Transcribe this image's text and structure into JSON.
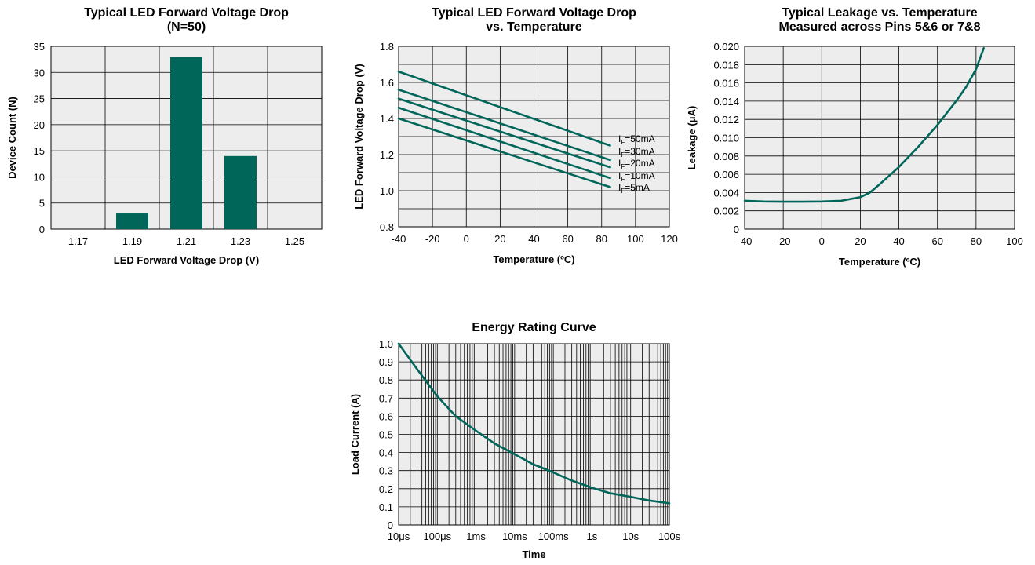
{
  "colors": {
    "series": "#00665a",
    "plot_bg": "#ededed",
    "grid": "#000000"
  },
  "chart_data": [
    {
      "type": "bar",
      "title": "Typical LED Forward Voltage Drop",
      "subtitle": "(N=50)",
      "xlabel": "LED Forward Voltage Drop (V)",
      "ylabel": "Device Count (N)",
      "categories": [
        "1.17",
        "1.19",
        "1.21",
        "1.23",
        "1.25"
      ],
      "values": [
        0,
        3,
        33,
        14,
        0
      ],
      "ylim": [
        0,
        35
      ],
      "yticks": [
        0,
        5,
        10,
        15,
        20,
        25,
        30,
        35
      ],
      "grid": true
    },
    {
      "type": "line",
      "title": "Typical LED Forward Voltage Drop",
      "subtitle": "vs. Temperature",
      "xlabel": "Temperature (ºC)",
      "ylabel": "LED Forward Voltage Drop (V)",
      "xlim": [
        -40,
        120
      ],
      "ylim": [
        0.8,
        1.8
      ],
      "xticks": [
        -40,
        -20,
        0,
        20,
        40,
        60,
        80,
        100,
        120
      ],
      "yticks": [
        0.8,
        1.0,
        1.2,
        1.4,
        1.6,
        1.8
      ],
      "grid": true,
      "series": [
        {
          "name": "IF=50mA",
          "x": [
            -40,
            85
          ],
          "y": [
            1.66,
            1.25
          ]
        },
        {
          "name": "IF=30mA",
          "x": [
            -40,
            85
          ],
          "y": [
            1.56,
            1.17
          ]
        },
        {
          "name": "IF=20mA",
          "x": [
            -40,
            85
          ],
          "y": [
            1.51,
            1.13
          ]
        },
        {
          "name": "IF=10mA",
          "x": [
            -40,
            85
          ],
          "y": [
            1.46,
            1.07
          ]
        },
        {
          "name": "IF=5mA",
          "x": [
            -40,
            85
          ],
          "y": [
            1.4,
            1.02
          ]
        }
      ],
      "annotations": [
        "IF=50mA",
        "IF=30mA",
        "IF=20mA",
        "IF=10mA",
        "IF=5mA"
      ]
    },
    {
      "type": "line",
      "title": "Typical Leakage vs. Temperature",
      "subtitle": "Measured across Pins 5&6 or 7&8",
      "xlabel": "Temperature (ºC)",
      "ylabel": "Leakage (μA)",
      "xlim": [
        -40,
        100
      ],
      "ylim": [
        0,
        0.02
      ],
      "xticks": [
        -40,
        -20,
        0,
        20,
        40,
        60,
        80,
        100
      ],
      "yticks": [
        "0",
        "0.002",
        "0.004",
        "0.006",
        "0.008",
        "0.010",
        "0.012",
        "0.014",
        "0.016",
        "0.018",
        "0.020"
      ],
      "grid": true,
      "series": [
        {
          "x": [
            -40,
            -30,
            -20,
            -10,
            0,
            10,
            15,
            20,
            25,
            30,
            40,
            50,
            60,
            70,
            75,
            80,
            84
          ],
          "y": [
            0.0031,
            0.00302,
            0.003,
            0.003,
            0.00302,
            0.0031,
            0.0033,
            0.0035,
            0.004,
            0.0049,
            0.0068,
            0.009,
            0.0114,
            0.0141,
            0.0156,
            0.0175,
            0.0198
          ]
        }
      ]
    },
    {
      "type": "line",
      "title": "Energy Rating Curve",
      "xlabel": "Time",
      "ylabel": "Load Current (A)",
      "xscale": "log",
      "xlim": [
        "10μs",
        "100s"
      ],
      "xticks": [
        "10μs",
        "100μs",
        "1ms",
        "10ms",
        "100ms",
        "1s",
        "10s",
        "100s"
      ],
      "ylim": [
        0,
        1.0
      ],
      "yticks": [
        "0",
        "0.1",
        "0.2",
        "0.3",
        "0.4",
        "0.5",
        "0.6",
        "0.7",
        "0.8",
        "0.9",
        "1.0"
      ],
      "grid": true,
      "series": [
        {
          "x": [
            "10μs",
            "30μs",
            "100μs",
            "300μs",
            "1ms",
            "3ms",
            "10ms",
            "30ms",
            "100ms",
            "300ms",
            "1s",
            "3s",
            "10s",
            "30s",
            "100s"
          ],
          "y": [
            1.0,
            0.86,
            0.71,
            0.6,
            0.52,
            0.45,
            0.39,
            0.335,
            0.29,
            0.245,
            0.205,
            0.175,
            0.155,
            0.135,
            0.12
          ]
        }
      ]
    }
  ]
}
